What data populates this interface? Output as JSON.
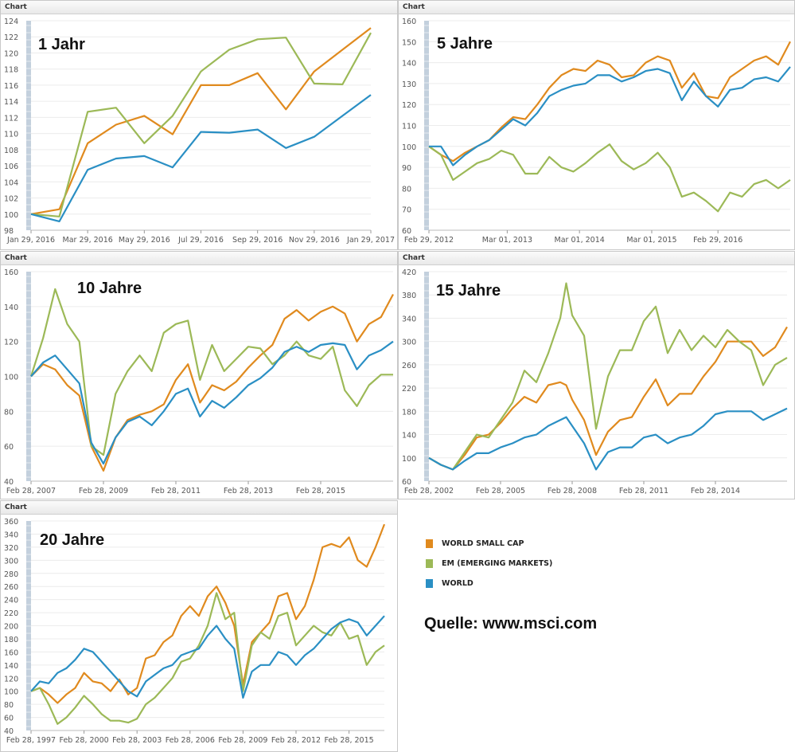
{
  "panel_header": "Chart",
  "colors": {
    "world_small_cap": "#e08a1e",
    "em": "#9cb957",
    "world": "#2a8fc4"
  },
  "legend": [
    {
      "key": "world_small_cap",
      "label": "WORLD SMALL CAP"
    },
    {
      "key": "em",
      "label": "EM (EMERGING MARKETS)"
    },
    {
      "key": "world",
      "label": "WORLD"
    }
  ],
  "source": "Quelle: www.msci.com",
  "chart_data": [
    {
      "type": "line",
      "title": "1 Jahr",
      "grid": true,
      "ylim": [
        98,
        124
      ],
      "yticks": [
        98,
        100,
        102,
        104,
        106,
        108,
        110,
        112,
        114,
        116,
        118,
        120,
        122,
        124
      ],
      "xlim": [
        "2016-01",
        "2017-01"
      ],
      "xticks": [
        {
          "date": "2016-01",
          "label": "Jan 29, 2016"
        },
        {
          "date": "2016-03",
          "label": "Mar 29, 2016"
        },
        {
          "date": "2016-05",
          "label": "May 29, 2016"
        },
        {
          "date": "2016-07",
          "label": "Jul 29, 2016"
        },
        {
          "date": "2016-09",
          "label": "Sep 29, 2016"
        },
        {
          "date": "2016-11",
          "label": "Nov 29, 2016"
        },
        {
          "date": "2017-01",
          "label": "Jan 29, 2017"
        }
      ],
      "x": [
        "2016-01",
        "2016-02",
        "2016-03",
        "2016-04",
        "2016-05",
        "2016-06",
        "2016-07",
        "2016-08",
        "2016-09",
        "2016-10",
        "2016-11",
        "2016-12",
        "2017-01"
      ],
      "series": [
        {
          "key": "world_small_cap",
          "values": [
            100,
            100.6,
            108.8,
            111.1,
            112.2,
            109.9,
            116,
            116,
            117.5,
            113,
            117.7,
            120.4,
            123.1
          ]
        },
        {
          "key": "em",
          "values": [
            100,
            99.7,
            112.7,
            113.2,
            108.8,
            112.2,
            117.7,
            120.4,
            121.7,
            121.9,
            116.2,
            116.1,
            122.5
          ]
        },
        {
          "key": "world",
          "values": [
            100,
            99.1,
            105.5,
            106.9,
            107.2,
            105.8,
            110.2,
            110.1,
            110.5,
            108.2,
            109.6,
            112.2,
            114.8
          ]
        }
      ]
    },
    {
      "type": "line",
      "title": "5 Jahre",
      "grid": true,
      "ylim": [
        60,
        160
      ],
      "yticks": [
        60,
        70,
        80,
        90,
        100,
        110,
        120,
        130,
        140,
        150,
        160
      ],
      "xlim": [
        "2012-02",
        "2017-02"
      ],
      "xticks": [
        {
          "date": "2012-02",
          "label": "Feb 29, 2012"
        },
        {
          "date": "2013-03",
          "label": "Mar 01, 2013"
        },
        {
          "date": "2014-03",
          "label": "Mar 01, 2014"
        },
        {
          "date": "2015-03",
          "label": "Mar 01, 2015"
        },
        {
          "date": "2016-02",
          "label": "Feb 29, 2016"
        }
      ],
      "x": [
        "2012-02",
        "2012-04",
        "2012-06",
        "2012-08",
        "2012-10",
        "2012-12",
        "2013-02",
        "2013-04",
        "2013-06",
        "2013-08",
        "2013-10",
        "2013-12",
        "2014-02",
        "2014-04",
        "2014-06",
        "2014-08",
        "2014-10",
        "2014-12",
        "2015-02",
        "2015-04",
        "2015-06",
        "2015-08",
        "2015-10",
        "2015-12",
        "2016-02",
        "2016-04",
        "2016-06",
        "2016-08",
        "2016-10",
        "2016-12",
        "2017-02"
      ],
      "series": [
        {
          "key": "world_small_cap",
          "values": [
            100,
            96,
            93,
            97,
            100,
            103,
            109,
            114,
            113,
            120,
            128,
            134,
            137,
            136,
            141,
            139,
            133,
            134,
            140,
            143,
            141,
            128,
            135,
            124,
            123,
            133,
            137,
            141,
            143,
            139,
            150
          ]
        },
        {
          "key": "em",
          "values": [
            100,
            96,
            84,
            88,
            92,
            94,
            98,
            96,
            87,
            87,
            95,
            90,
            88,
            92,
            97,
            101,
            93,
            89,
            92,
            97,
            90,
            76,
            78,
            74,
            69,
            78,
            76,
            82,
            84,
            80,
            84
          ]
        },
        {
          "key": "world",
          "values": [
            100,
            100,
            91,
            96,
            100,
            103,
            108,
            113,
            110,
            116,
            124,
            127,
            129,
            130,
            134,
            134,
            131,
            133,
            136,
            137,
            135,
            122,
            131,
            124,
            119,
            127,
            128,
            132,
            133,
            131,
            138
          ]
        }
      ]
    },
    {
      "type": "line",
      "title": "10 Jahre",
      "grid": true,
      "ylim": [
        40,
        160
      ],
      "yticks": [
        40,
        60,
        80,
        100,
        120,
        140,
        160
      ],
      "xlim": [
        "2007-02",
        "2017-02"
      ],
      "xticks": [
        {
          "date": "2007-02",
          "label": "Feb 28, 2007"
        },
        {
          "date": "2009-02",
          "label": "Feb 28, 2009"
        },
        {
          "date": "2011-02",
          "label": "Feb 28, 2011"
        },
        {
          "date": "2013-02",
          "label": "Feb 28, 2013"
        },
        {
          "date": "2015-02",
          "label": "Feb 28, 2015"
        }
      ],
      "x": [
        "2007-02",
        "2007-06",
        "2007-10",
        "2008-02",
        "2008-06",
        "2008-10",
        "2009-02",
        "2009-06",
        "2009-10",
        "2010-02",
        "2010-06",
        "2010-10",
        "2011-02",
        "2011-06",
        "2011-10",
        "2012-02",
        "2012-06",
        "2012-10",
        "2013-02",
        "2013-06",
        "2013-10",
        "2014-02",
        "2014-06",
        "2014-10",
        "2015-02",
        "2015-06",
        "2015-10",
        "2016-02",
        "2016-06",
        "2016-10",
        "2017-02"
      ],
      "series": [
        {
          "key": "world_small_cap",
          "values": [
            100,
            107,
            104,
            95,
            89,
            60,
            46,
            65,
            75,
            78,
            80,
            84,
            98,
            107,
            85,
            95,
            92,
            97,
            105,
            112,
            118,
            133,
            138,
            132,
            137,
            140,
            136,
            120,
            130,
            134,
            147
          ]
        },
        {
          "key": "em",
          "values": [
            100,
            122,
            150,
            130,
            120,
            60,
            55,
            90,
            103,
            112,
            103,
            125,
            130,
            132,
            98,
            118,
            103,
            110,
            117,
            116,
            107,
            112,
            120,
            112,
            110,
            117,
            92,
            83,
            95,
            101,
            101
          ]
        },
        {
          "key": "world",
          "values": [
            100,
            108,
            112,
            104,
            96,
            62,
            50,
            65,
            74,
            77,
            72,
            80,
            90,
            93,
            77,
            86,
            82,
            88,
            95,
            99,
            105,
            114,
            117,
            114,
            118,
            119,
            118,
            104,
            112,
            115,
            120
          ]
        }
      ]
    },
    {
      "type": "line",
      "title": "15 Jahre",
      "grid": true,
      "ylim": [
        60,
        420
      ],
      "yticks": [
        60,
        100,
        140,
        180,
        220,
        260,
        300,
        340,
        380,
        420
      ],
      "xlim": [
        "2002-02",
        "2017-02"
      ],
      "xticks": [
        {
          "date": "2002-02",
          "label": "Feb 28, 2002"
        },
        {
          "date": "2005-02",
          "label": "Feb 28, 2005"
        },
        {
          "date": "2008-02",
          "label": "Feb 28, 2008"
        },
        {
          "date": "2011-02",
          "label": "Feb 28, 2011"
        },
        {
          "date": "2014-02",
          "label": "Feb 28, 2014"
        }
      ],
      "x": [
        "2002-02",
        "2002-08",
        "2003-02",
        "2003-08",
        "2004-02",
        "2004-08",
        "2005-02",
        "2005-08",
        "2006-02",
        "2006-08",
        "2007-02",
        "2007-08",
        "2007-11",
        "2008-02",
        "2008-08",
        "2009-02",
        "2009-08",
        "2010-02",
        "2010-08",
        "2011-02",
        "2011-08",
        "2012-02",
        "2012-08",
        "2013-02",
        "2013-08",
        "2014-02",
        "2014-08",
        "2015-02",
        "2015-08",
        "2016-02",
        "2016-08",
        "2017-02"
      ],
      "series": [
        {
          "key": "world_small_cap",
          "values": [
            100,
            88,
            80,
            105,
            135,
            140,
            160,
            185,
            205,
            195,
            225,
            230,
            225,
            200,
            165,
            105,
            145,
            165,
            170,
            205,
            235,
            190,
            210,
            210,
            240,
            265,
            300,
            300,
            300,
            275,
            290,
            325
          ]
        },
        {
          "key": "em",
          "values": [
            100,
            88,
            80,
            110,
            140,
            135,
            165,
            195,
            250,
            230,
            280,
            340,
            400,
            345,
            310,
            150,
            240,
            285,
            285,
            335,
            360,
            280,
            320,
            285,
            310,
            290,
            320,
            300,
            285,
            225,
            260,
            272
          ]
        },
        {
          "key": "world",
          "values": [
            100,
            88,
            80,
            95,
            108,
            108,
            118,
            125,
            135,
            140,
            155,
            165,
            170,
            155,
            125,
            80,
            110,
            118,
            118,
            135,
            140,
            125,
            135,
            140,
            155,
            175,
            180,
            180,
            180,
            165,
            175,
            185
          ]
        }
      ]
    },
    {
      "type": "line",
      "title": "20 Jahre",
      "grid": true,
      "ylim": [
        40,
        360
      ],
      "yticks": [
        40,
        60,
        80,
        100,
        120,
        140,
        160,
        180,
        200,
        220,
        240,
        260,
        280,
        300,
        320,
        340,
        360
      ],
      "xlim": [
        "1997-02",
        "2017-02"
      ],
      "xticks": [
        {
          "date": "1997-02",
          "label": "Feb 28, 1997"
        },
        {
          "date": "2000-02",
          "label": "Feb 28, 2000"
        },
        {
          "date": "2003-02",
          "label": "Feb 28, 2003"
        },
        {
          "date": "2006-02",
          "label": "Feb 28, 2006"
        },
        {
          "date": "2009-02",
          "label": "Feb 28, 2009"
        },
        {
          "date": "2012-02",
          "label": "Feb 28, 2012"
        },
        {
          "date": "2015-02",
          "label": "Feb 28, 2015"
        }
      ],
      "x": [
        "1997-02",
        "1997-08",
        "1998-02",
        "1998-08",
        "1999-02",
        "1999-08",
        "2000-02",
        "2000-08",
        "2001-02",
        "2001-08",
        "2002-02",
        "2002-08",
        "2003-02",
        "2003-08",
        "2004-02",
        "2004-08",
        "2005-02",
        "2005-08",
        "2006-02",
        "2006-08",
        "2007-02",
        "2007-08",
        "2008-02",
        "2008-08",
        "2009-02",
        "2009-08",
        "2010-02",
        "2010-08",
        "2011-02",
        "2011-08",
        "2012-02",
        "2012-08",
        "2013-02",
        "2013-08",
        "2014-02",
        "2014-08",
        "2015-02",
        "2015-08",
        "2016-02",
        "2016-08",
        "2017-02"
      ],
      "series": [
        {
          "key": "world_small_cap",
          "values": [
            100,
            105,
            95,
            82,
            95,
            105,
            128,
            115,
            112,
            100,
            118,
            95,
            105,
            150,
            155,
            175,
            185,
            215,
            230,
            215,
            245,
            260,
            235,
            200,
            110,
            175,
            190,
            205,
            245,
            250,
            210,
            230,
            270,
            320,
            325,
            320,
            335,
            300,
            290,
            320,
            355
          ]
        },
        {
          "key": "em",
          "values": [
            100,
            105,
            80,
            50,
            60,
            75,
            93,
            80,
            65,
            55,
            55,
            52,
            58,
            80,
            90,
            105,
            120,
            145,
            150,
            170,
            200,
            250,
            210,
            220,
            100,
            170,
            190,
            180,
            215,
            220,
            170,
            185,
            200,
            190,
            185,
            205,
            180,
            185,
            140,
            160,
            170
          ]
        },
        {
          "key": "world",
          "values": [
            100,
            115,
            112,
            128,
            135,
            148,
            165,
            160,
            145,
            130,
            115,
            100,
            92,
            115,
            125,
            135,
            140,
            155,
            160,
            165,
            185,
            200,
            180,
            165,
            90,
            130,
            140,
            140,
            160,
            155,
            140,
            155,
            165,
            180,
            195,
            205,
            210,
            205,
            185,
            200,
            215
          ]
        }
      ]
    }
  ]
}
